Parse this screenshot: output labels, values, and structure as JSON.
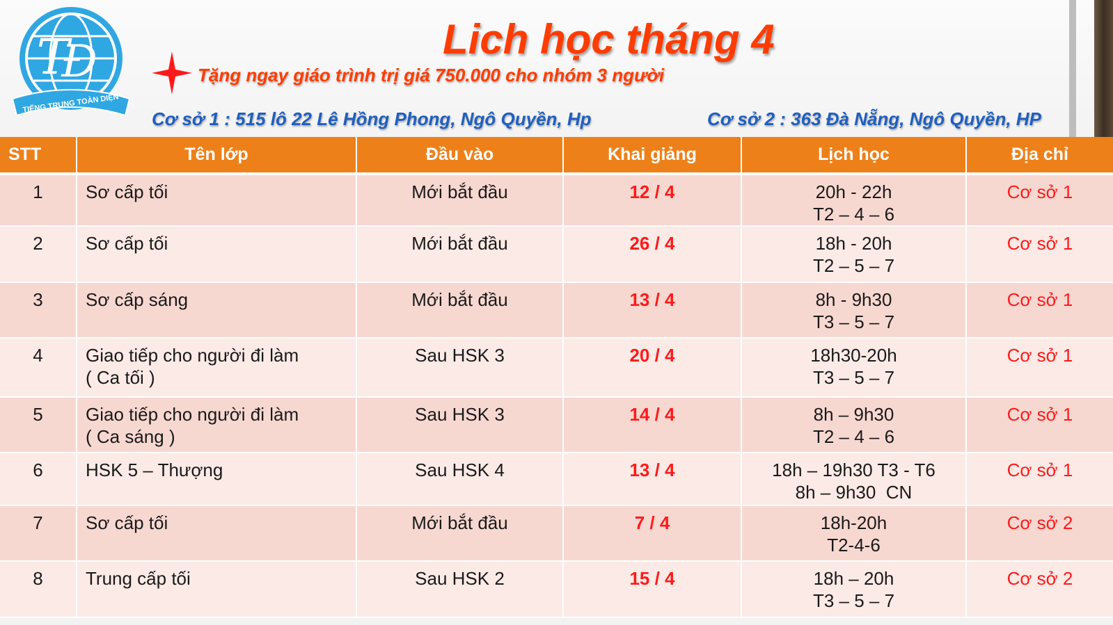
{
  "header": {
    "logo_text": "TIẾNG TRUNG TOÀN DIỆN",
    "title": "Lich học tháng 4",
    "promo": "Tặng ngay giáo trình trị giá 750.000 cho nhóm 3 người",
    "address_1": "Cơ sở 1 : 515 lô 22 Lê Hồng Phong, Ngô Quyền, Hp",
    "address_2": "Cơ sở 2 : 363 Đà Nẵng, Ngô Quyền, HP"
  },
  "colors": {
    "title": "#ff3c00",
    "address": "#1f5fbf",
    "table_header": "#ee8019",
    "row_odd": "#f7d8d1",
    "row_even": "#fbeae6",
    "highlight": "#ff1a1a",
    "logo": "#2fa7e3"
  },
  "icons": [
    "logo-globe-icon",
    "red-star-icon"
  ],
  "table": {
    "columns": [
      "STT",
      "Tên lớp",
      "Đầu vào",
      "Khai giảng",
      "Lịch học",
      "Địa chỉ"
    ],
    "rows": [
      {
        "stt": "1",
        "name": [
          "Sơ cấp tối"
        ],
        "input": "Mới bắt đầu",
        "start": "12 / 4",
        "schedule": [
          "20h - 22h",
          "T2 – 4 – 6"
        ],
        "location": "Cơ sở 1"
      },
      {
        "stt": "2",
        "name": [
          "Sơ cấp tối"
        ],
        "input": "Mới bắt đầu",
        "start": "26 / 4",
        "schedule": [
          "18h - 20h",
          "T2 – 5 – 7"
        ],
        "location": "Cơ sở 1"
      },
      {
        "stt": "3",
        "name": [
          "Sơ cấp sáng"
        ],
        "input": "Mới bắt đầu",
        "start": "13 / 4",
        "schedule": [
          "8h - 9h30",
          "T3 – 5 – 7"
        ],
        "location": "Cơ sở 1"
      },
      {
        "stt": "4",
        "name": [
          "Giao tiếp cho người đi làm",
          "( Ca tối )"
        ],
        "input": "Sau HSK 3",
        "start": "20 / 4",
        "schedule": [
          "18h30-20h",
          "T3 – 5 – 7"
        ],
        "location": "Cơ sở 1"
      },
      {
        "stt": "5",
        "name": [
          "Giao tiếp cho người đi làm",
          "( Ca sáng )"
        ],
        "input": "Sau HSK 3",
        "start": "14 / 4",
        "schedule": [
          "8h – 9h30",
          "T2 – 4 – 6"
        ],
        "location": "Cơ sở 1"
      },
      {
        "stt": "6",
        "name": [
          "HSK 5 – Thượng"
        ],
        "input": "Sau HSK 4",
        "start": "13 / 4",
        "schedule": [
          "18h – 19h30 T3 - T6",
          "8h – 9h30  CN"
        ],
        "location": "Cơ sở 1"
      },
      {
        "stt": "7",
        "name": [
          "Sơ cấp tối"
        ],
        "input": "Mới bắt đầu",
        "start": "7 / 4",
        "schedule": [
          "18h-20h",
          "T2-4-6"
        ],
        "location": "Cơ sở 2"
      },
      {
        "stt": "8",
        "name": [
          "Trung cấp tối"
        ],
        "input": "Sau HSK 2",
        "start": "15 / 4",
        "schedule": [
          "18h – 20h",
          "T3 – 5 – 7"
        ],
        "location": "Cơ sở 2"
      }
    ]
  }
}
